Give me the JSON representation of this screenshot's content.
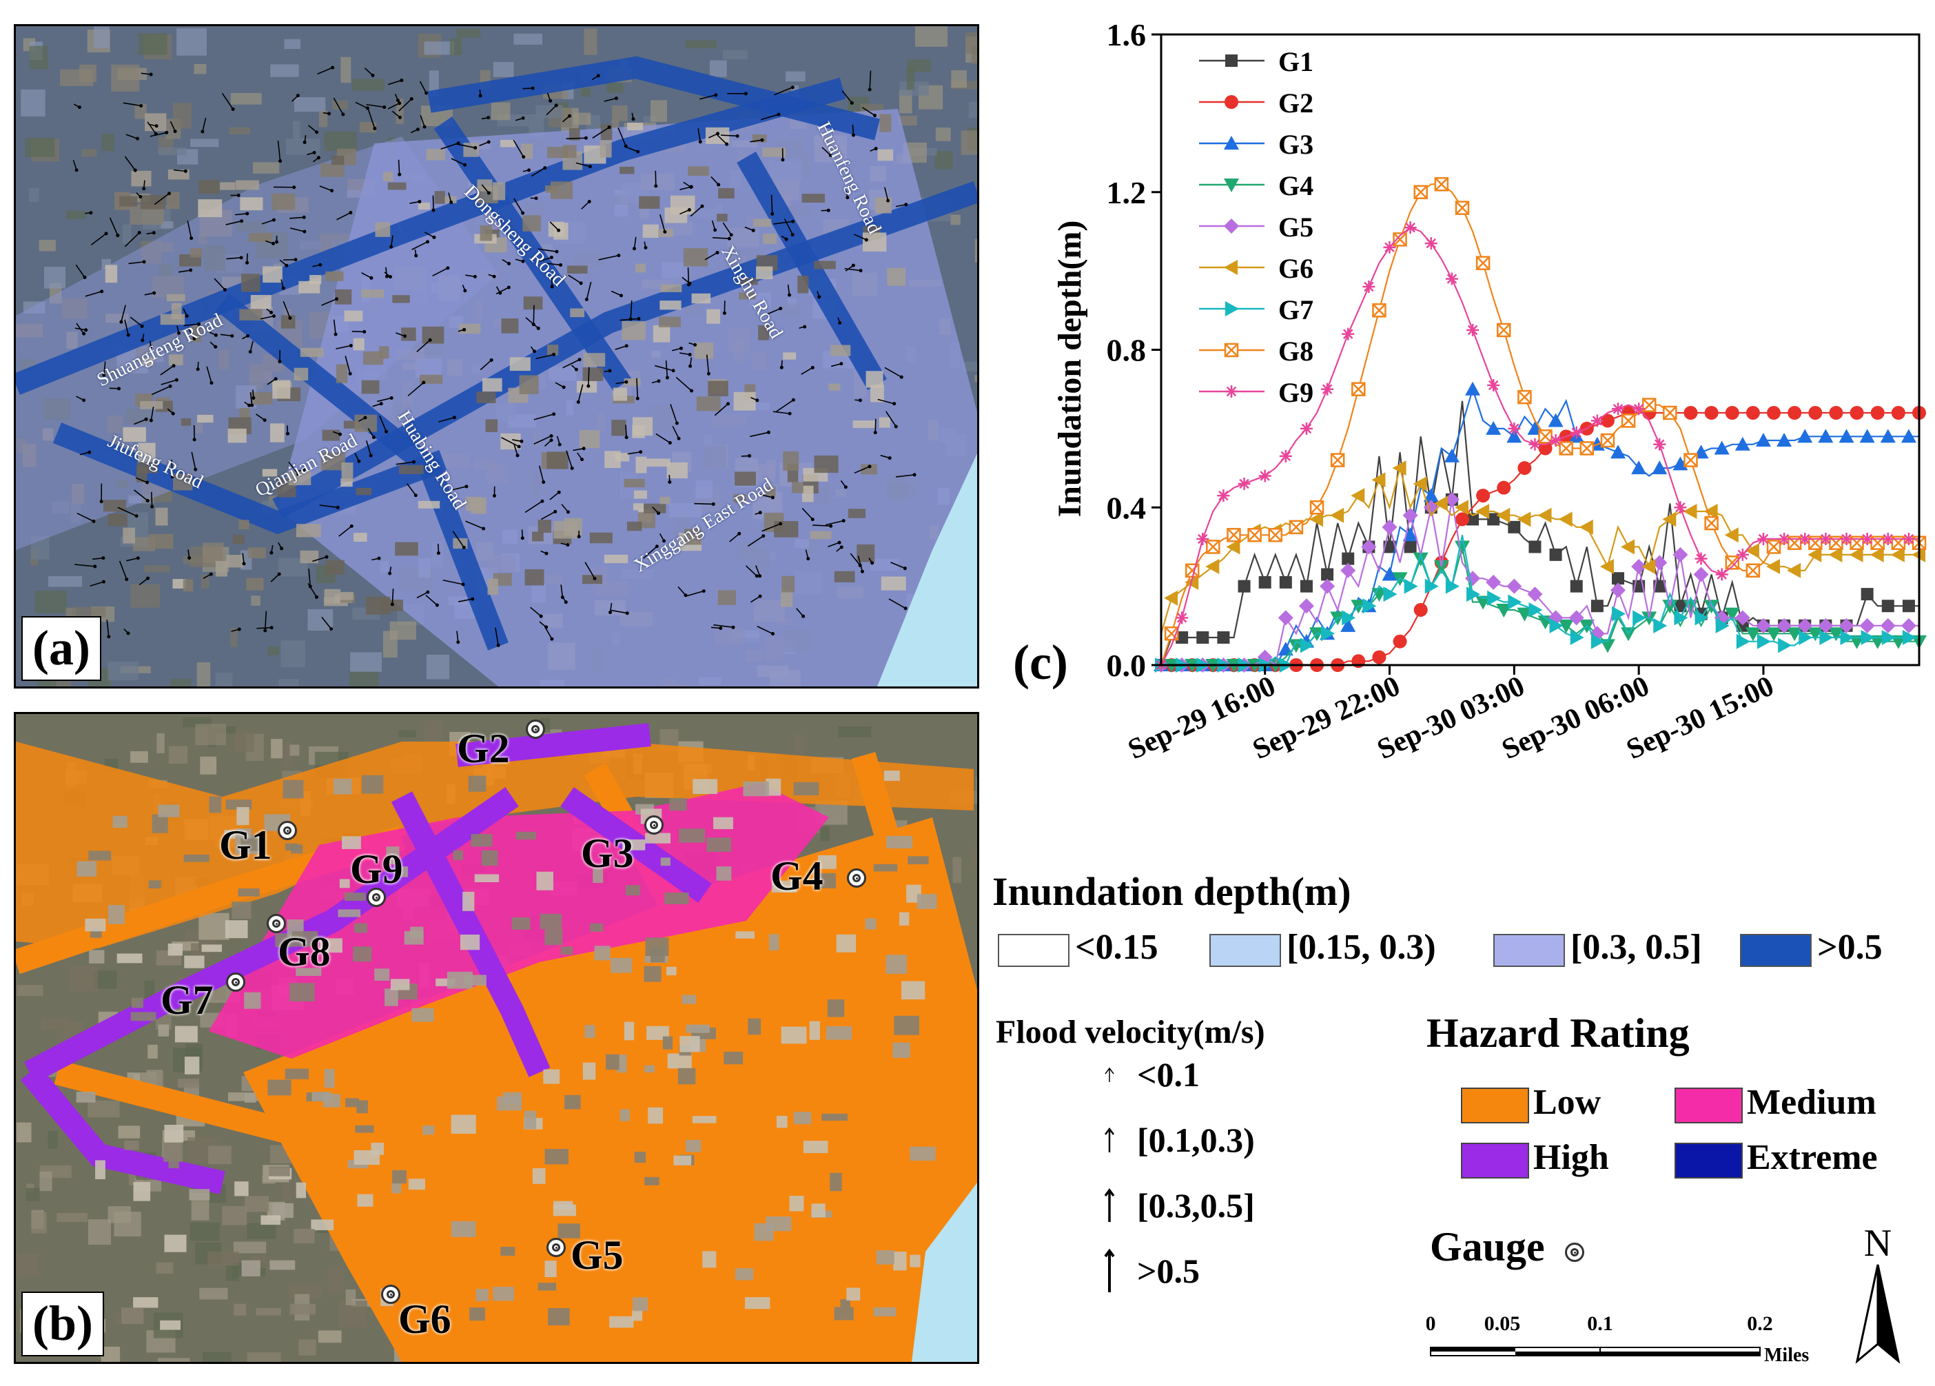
{
  "panels": {
    "a": {
      "label": "(a)"
    },
    "b": {
      "label": "(b)"
    },
    "c": {
      "label": "(c)"
    }
  },
  "roads": [
    {
      "name": "Shuangfeng Road"
    },
    {
      "name": "Jiufeng Road"
    },
    {
      "name": "Qianjian Road"
    },
    {
      "name": "Huabing Road"
    },
    {
      "name": "Dongsheng Road"
    },
    {
      "name": "Xinghu Road"
    },
    {
      "name": "Huanfeng Road"
    },
    {
      "name": "Xinggang East Road"
    }
  ],
  "gauges_map": [
    "G1",
    "G2",
    "G3",
    "G4",
    "G5",
    "G6",
    "G7",
    "G8",
    "G9"
  ],
  "chart_data": {
    "type": "line",
    "xlabel": "",
    "ylabel": "Inundation depth(m)",
    "ylim": [
      0,
      1.6
    ],
    "yticks": [
      "0.0",
      "0.4",
      "0.8",
      "1.2",
      "1.6"
    ],
    "xticks": [
      "Sep-29 16:00",
      "Sep-29 22:00",
      "Sep-30 03:00",
      "Sep-30 06:00",
      "Sep-30 15:00"
    ],
    "xtick_positions": [
      10,
      22,
      34,
      46,
      58
    ],
    "n_points": 74,
    "legend_position": "top-left",
    "series": [
      {
        "name": "G1",
        "color": "#404040",
        "marker": "square",
        "values": [
          0.0,
          0.07,
          0.07,
          0.07,
          0.07,
          0.07,
          0.07,
          0.07,
          0.2,
          0.28,
          0.21,
          0.28,
          0.21,
          0.28,
          0.2,
          0.36,
          0.23,
          0.36,
          0.27,
          0.36,
          0.3,
          0.53,
          0.3,
          0.54,
          0.3,
          0.58,
          0.4,
          0.55,
          0.42,
          0.67,
          0.37,
          0.37,
          0.37,
          0.36,
          0.35,
          0.32,
          0.3,
          0.36,
          0.28,
          0.3,
          0.2,
          0.3,
          0.15,
          0.15,
          0.22,
          0.21,
          0.2,
          0.3,
          0.2,
          0.41,
          0.15,
          0.23,
          0.13,
          0.23,
          0.12,
          0.21,
          0.1,
          0.12,
          0.1,
          0.1,
          0.1,
          0.1,
          0.1,
          0.1,
          0.1,
          0.1,
          0.1,
          0.1,
          0.18,
          0.15,
          0.15,
          0.15,
          0.15,
          0.15
        ]
      },
      {
        "name": "G2",
        "color": "#e8312a",
        "marker": "circle",
        "values": [
          0.0,
          0.0,
          0.0,
          0.0,
          0.0,
          0.0,
          0.0,
          0.0,
          0.0,
          0.0,
          0.0,
          0.0,
          0.0,
          0.0,
          0.0,
          0.0,
          0.0,
          0.0,
          0.01,
          0.01,
          0.01,
          0.02,
          0.03,
          0.06,
          0.09,
          0.14,
          0.2,
          0.26,
          0.32,
          0.37,
          0.4,
          0.43,
          0.44,
          0.45,
          0.47,
          0.5,
          0.52,
          0.55,
          0.57,
          0.58,
          0.59,
          0.6,
          0.61,
          0.62,
          0.63,
          0.64,
          0.64,
          0.64,
          0.64,
          0.64,
          0.64,
          0.64,
          0.64,
          0.64,
          0.64,
          0.64,
          0.64,
          0.64,
          0.64,
          0.64,
          0.64,
          0.64,
          0.64,
          0.64,
          0.64,
          0.64,
          0.64,
          0.64,
          0.64,
          0.64,
          0.64,
          0.64,
          0.64,
          0.64
        ]
      },
      {
        "name": "G3",
        "color": "#1f6fe0",
        "marker": "triangle-up",
        "values": [
          0.0,
          0.0,
          0.0,
          0.0,
          0.0,
          0.0,
          0.0,
          0.0,
          0.0,
          0.0,
          0.0,
          0.0,
          0.04,
          0.1,
          0.06,
          0.12,
          0.08,
          0.14,
          0.1,
          0.17,
          0.15,
          0.25,
          0.23,
          0.35,
          0.33,
          0.45,
          0.43,
          0.55,
          0.53,
          0.61,
          0.7,
          0.62,
          0.6,
          0.6,
          0.58,
          0.63,
          0.6,
          0.65,
          0.62,
          0.67,
          0.58,
          0.56,
          0.56,
          0.55,
          0.54,
          0.53,
          0.5,
          0.48,
          0.5,
          0.5,
          0.51,
          0.53,
          0.54,
          0.55,
          0.55,
          0.56,
          0.56,
          0.56,
          0.57,
          0.57,
          0.57,
          0.57,
          0.58,
          0.58,
          0.58,
          0.58,
          0.58,
          0.58,
          0.58,
          0.58,
          0.58,
          0.58,
          0.58,
          0.58
        ]
      },
      {
        "name": "G4",
        "color": "#1fa870",
        "marker": "triangle-down",
        "values": [
          0.0,
          0.0,
          0.0,
          0.0,
          0.0,
          0.0,
          0.0,
          0.0,
          0.0,
          0.0,
          0.0,
          0.0,
          0.02,
          0.05,
          0.05,
          0.08,
          0.08,
          0.12,
          0.12,
          0.15,
          0.15,
          0.18,
          0.18,
          0.22,
          0.2,
          0.27,
          0.2,
          0.25,
          0.2,
          0.3,
          0.16,
          0.16,
          0.15,
          0.14,
          0.14,
          0.13,
          0.12,
          0.11,
          0.1,
          0.1,
          0.08,
          0.1,
          0.08,
          0.05,
          0.12,
          0.08,
          0.1,
          0.12,
          0.1,
          0.15,
          0.1,
          0.15,
          0.1,
          0.15,
          0.1,
          0.13,
          0.08,
          0.08,
          0.08,
          0.08,
          0.08,
          0.08,
          0.08,
          0.08,
          0.08,
          0.08,
          0.06,
          0.06,
          0.06,
          0.06,
          0.06,
          0.06,
          0.06,
          0.06
        ]
      },
      {
        "name": "G5",
        "color": "#b86ee0",
        "marker": "diamond",
        "values": [
          0.0,
          0.0,
          0.0,
          0.0,
          0.0,
          0.0,
          0.0,
          0.0,
          0.0,
          0.0,
          0.02,
          0.0,
          0.12,
          0.08,
          0.15,
          0.11,
          0.2,
          0.14,
          0.24,
          0.2,
          0.3,
          0.24,
          0.35,
          0.26,
          0.38,
          0.28,
          0.4,
          0.25,
          0.42,
          0.26,
          0.22,
          0.22,
          0.21,
          0.2,
          0.2,
          0.19,
          0.18,
          0.15,
          0.12,
          0.12,
          0.12,
          0.15,
          0.08,
          0.08,
          0.19,
          0.12,
          0.25,
          0.12,
          0.26,
          0.15,
          0.28,
          0.12,
          0.23,
          0.15,
          0.12,
          0.12,
          0.12,
          0.1,
          0.1,
          0.1,
          0.1,
          0.1,
          0.1,
          0.1,
          0.1,
          0.1,
          0.1,
          0.1,
          0.1,
          0.1,
          0.1,
          0.1,
          0.1,
          0.1
        ]
      },
      {
        "name": "G6",
        "color": "#d49a18",
        "marker": "triangle-left",
        "values": [
          0.08,
          0.17,
          0.19,
          0.21,
          0.23,
          0.25,
          0.27,
          0.3,
          0.32,
          0.34,
          0.35,
          0.34,
          0.36,
          0.35,
          0.37,
          0.37,
          0.38,
          0.38,
          0.39,
          0.43,
          0.4,
          0.47,
          0.4,
          0.5,
          0.4,
          0.46,
          0.38,
          0.41,
          0.38,
          0.4,
          0.38,
          0.39,
          0.39,
          0.38,
          0.38,
          0.37,
          0.38,
          0.38,
          0.37,
          0.37,
          0.35,
          0.35,
          0.3,
          0.25,
          0.35,
          0.3,
          0.3,
          0.25,
          0.35,
          0.37,
          0.39,
          0.39,
          0.39,
          0.39,
          0.38,
          0.33,
          0.33,
          0.29,
          0.26,
          0.25,
          0.25,
          0.24,
          0.24,
          0.28,
          0.28,
          0.28,
          0.28,
          0.28,
          0.28,
          0.28,
          0.28,
          0.28,
          0.28,
          0.28
        ]
      },
      {
        "name": "G7",
        "color": "#18b8c0",
        "marker": "triangle-right",
        "values": [
          0.0,
          0.0,
          0.0,
          0.0,
          0.0,
          0.0,
          0.0,
          0.0,
          0.0,
          0.0,
          0.0,
          0.02,
          0.0,
          0.06,
          0.05,
          0.08,
          0.08,
          0.12,
          0.12,
          0.15,
          0.15,
          0.2,
          0.18,
          0.22,
          0.2,
          0.28,
          0.2,
          0.24,
          0.2,
          0.33,
          0.18,
          0.17,
          0.17,
          0.16,
          0.16,
          0.15,
          0.14,
          0.12,
          0.1,
          0.08,
          0.07,
          0.1,
          0.06,
          0.06,
          0.13,
          0.08,
          0.12,
          0.12,
          0.1,
          0.18,
          0.12,
          0.17,
          0.12,
          0.16,
          0.1,
          0.12,
          0.06,
          0.06,
          0.06,
          0.06,
          0.05,
          0.05,
          0.07,
          0.07,
          0.07,
          0.07,
          0.07,
          0.07,
          0.07,
          0.07,
          0.07,
          0.07,
          0.07,
          0.07
        ]
      },
      {
        "name": "G8",
        "color": "#f0841a",
        "marker": "square-x",
        "values": [
          0.0,
          0.08,
          0.17,
          0.24,
          0.28,
          0.3,
          0.32,
          0.33,
          0.33,
          0.33,
          0.33,
          0.33,
          0.33,
          0.35,
          0.36,
          0.4,
          0.45,
          0.52,
          0.6,
          0.7,
          0.8,
          0.9,
          1.0,
          1.08,
          1.15,
          1.2,
          1.22,
          1.22,
          1.2,
          1.16,
          1.1,
          1.02,
          0.93,
          0.85,
          0.76,
          0.68,
          0.62,
          0.58,
          0.56,
          0.55,
          0.55,
          0.55,
          0.56,
          0.57,
          0.6,
          0.62,
          0.64,
          0.66,
          0.66,
          0.64,
          0.6,
          0.52,
          0.44,
          0.36,
          0.3,
          0.26,
          0.24,
          0.24,
          0.26,
          0.3,
          0.31,
          0.31,
          0.31,
          0.31,
          0.31,
          0.31,
          0.31,
          0.31,
          0.31,
          0.31,
          0.31,
          0.31,
          0.31,
          0.31
        ]
      },
      {
        "name": "G9",
        "color": "#e8459a",
        "marker": "asterisk",
        "values": [
          0.0,
          0.05,
          0.12,
          0.22,
          0.32,
          0.39,
          0.43,
          0.45,
          0.46,
          0.47,
          0.48,
          0.5,
          0.53,
          0.57,
          0.6,
          0.64,
          0.7,
          0.77,
          0.84,
          0.9,
          0.96,
          1.02,
          1.06,
          1.09,
          1.11,
          1.1,
          1.07,
          1.03,
          0.98,
          0.92,
          0.85,
          0.78,
          0.71,
          0.65,
          0.6,
          0.57,
          0.56,
          0.56,
          0.57,
          0.58,
          0.59,
          0.6,
          0.62,
          0.64,
          0.65,
          0.66,
          0.65,
          0.62,
          0.56,
          0.48,
          0.4,
          0.33,
          0.27,
          0.24,
          0.23,
          0.25,
          0.28,
          0.31,
          0.32,
          0.32,
          0.32,
          0.32,
          0.32,
          0.32,
          0.32,
          0.32,
          0.32,
          0.32,
          0.32,
          0.32,
          0.32,
          0.32,
          0.32,
          0.32
        ]
      }
    ]
  },
  "legend": {
    "depth_title": "Inundation depth(m)",
    "depth_items": [
      {
        "label": "<0.15",
        "color": "#ffffff"
      },
      {
        "label": "[0.15, 0.3)",
        "color": "#b9d4f5"
      },
      {
        "label": "[0.3, 0.5]",
        "color": "#a9b0ec"
      },
      {
        "label": ">0.5",
        "color": "#1a52b8"
      }
    ],
    "velocity_title": "Flood velocity(m/s)",
    "velocity_items": [
      "<0.1",
      "[0.1,0.3)",
      "[0.3,0.5]",
      ">0.5"
    ],
    "hazard_title": "Hazard Rating",
    "hazard_items": [
      {
        "label": "Low",
        "color": "#f5870f"
      },
      {
        "label": "Medium",
        "color": "#f52ca8"
      },
      {
        "label": "High",
        "color": "#9b2be6"
      },
      {
        "label": "Extreme",
        "color": "#0a16a8"
      }
    ],
    "gauge_label": "Gauge",
    "scale": {
      "ticks": [
        "0",
        "0.05",
        "0.1",
        "0.2"
      ],
      "unit": "Miles"
    },
    "north": "N"
  }
}
